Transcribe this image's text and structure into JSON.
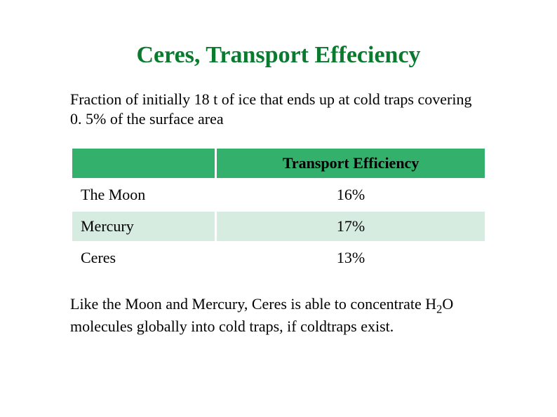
{
  "title": "Ceres, Transport Effeciency",
  "intro": "Fraction of initially 18 t of ice that ends up at cold traps covering 0. 5% of the surface area",
  "table": {
    "header_body": "",
    "header_value": "Transport Efficiency",
    "header_bg": "#33b06b",
    "row_bg_odd": "#ffffff",
    "row_bg_even": "#d6ece0",
    "rows": [
      {
        "body": "The Moon",
        "value": "16%"
      },
      {
        "body": "Mercury",
        "value": "17%"
      },
      {
        "body": "Ceres",
        "value": "13%"
      }
    ]
  },
  "outro_pre": "Like the Moon and Mercury, Ceres is able to concentrate H",
  "outro_sub": "2",
  "outro_post": "O molecules globally into cold traps, if coldtraps exist.",
  "title_color": "#0a7a2f",
  "text_color": "#000000"
}
